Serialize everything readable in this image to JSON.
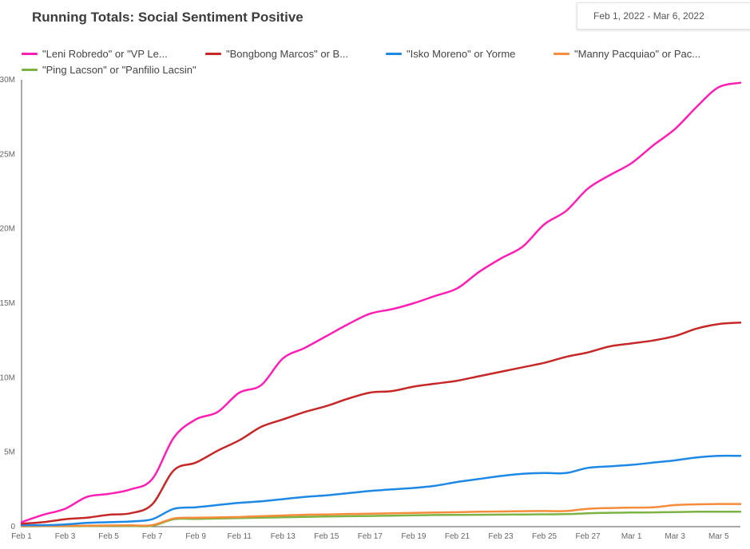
{
  "header": {
    "title": "Running Totals: Social Sentiment Positive",
    "date_range": "Feb 1, 2022 - Mar 6, 2022"
  },
  "chart_data": {
    "type": "line",
    "title": "Running Totals: Social Sentiment Positive",
    "xlabel": "",
    "ylabel": "",
    "ylim": [
      0,
      30000000
    ],
    "yticks": [
      0,
      5000000,
      10000000,
      15000000,
      20000000,
      25000000,
      30000000
    ],
    "ytick_labels": [
      "0",
      "5M",
      "10M",
      "15M",
      "20M",
      "25M",
      "30M"
    ],
    "x_tick_labels": [
      "Feb 1",
      "Feb 3",
      "Feb 5",
      "Feb 7",
      "Feb 9",
      "Feb 11",
      "Feb 13",
      "Feb 15",
      "Feb 17",
      "Feb 19",
      "Feb 21",
      "Feb 23",
      "Feb 25",
      "Feb 27",
      "Mar 1",
      "Mar 3",
      "Mar 5"
    ],
    "x": [
      "Feb 1",
      "Feb 2",
      "Feb 3",
      "Feb 4",
      "Feb 5",
      "Feb 6",
      "Feb 7",
      "Feb 8",
      "Feb 9",
      "Feb 10",
      "Feb 11",
      "Feb 12",
      "Feb 13",
      "Feb 14",
      "Feb 15",
      "Feb 16",
      "Feb 17",
      "Feb 18",
      "Feb 19",
      "Feb 20",
      "Feb 21",
      "Feb 22",
      "Feb 23",
      "Feb 24",
      "Feb 25",
      "Feb 26",
      "Feb 27",
      "Feb 28",
      "Mar 1",
      "Mar 2",
      "Mar 3",
      "Mar 4",
      "Mar 5",
      "Mar 6"
    ],
    "grid": false,
    "legend_position": "top",
    "series": [
      {
        "name": "\"Leni Robredo\" or \"VP Le...",
        "color": "#ff1fb4",
        "values": [
          0.3,
          0.8,
          1.2,
          2.0,
          2.2,
          2.5,
          3.2,
          6.0,
          7.2,
          7.7,
          9.0,
          9.5,
          11.3,
          12.0,
          12.8,
          13.6,
          14.3,
          14.6,
          15.0,
          15.5,
          16.0,
          17.1,
          18.0,
          18.8,
          20.3,
          21.2,
          22.7,
          23.6,
          24.4,
          25.6,
          26.7,
          28.2,
          29.5,
          29.8
        ]
      },
      {
        "name": "\"Bongbong Marcos\" or B...",
        "color": "#c62828",
        "values": [
          0.2,
          0.3,
          0.5,
          0.6,
          0.8,
          0.9,
          1.5,
          3.8,
          4.3,
          5.1,
          5.8,
          6.7,
          7.2,
          7.7,
          8.1,
          8.6,
          9.0,
          9.1,
          9.4,
          9.6,
          9.8,
          10.1,
          10.4,
          10.7,
          11.0,
          11.4,
          11.7,
          12.1,
          12.3,
          12.5,
          12.8,
          13.3,
          13.6,
          13.7
        ]
      },
      {
        "name": "\"Isko Moreno\" or Yorme",
        "color": "#1e88e5",
        "values": [
          0.1,
          0.1,
          0.15,
          0.25,
          0.3,
          0.35,
          0.5,
          1.2,
          1.3,
          1.45,
          1.6,
          1.7,
          1.85,
          2.0,
          2.1,
          2.25,
          2.4,
          2.5,
          2.6,
          2.75,
          3.0,
          3.2,
          3.4,
          3.55,
          3.6,
          3.6,
          3.95,
          4.05,
          4.15,
          4.3,
          4.45,
          4.65,
          4.75,
          4.75
        ]
      },
      {
        "name": "\"Manny Pacquiao\" or Pac...",
        "color": "#f58c3b",
        "values": [
          0.05,
          0.05,
          0.05,
          0.07,
          0.08,
          0.09,
          0.1,
          0.55,
          0.6,
          0.62,
          0.65,
          0.7,
          0.75,
          0.8,
          0.82,
          0.85,
          0.87,
          0.9,
          0.92,
          0.95,
          0.97,
          1.0,
          1.02,
          1.04,
          1.05,
          1.05,
          1.2,
          1.25,
          1.28,
          1.3,
          1.45,
          1.5,
          1.52,
          1.52
        ]
      },
      {
        "name": "\"Ping Lacson\" or \"Panfilio Lacsin\"",
        "color": "#7cb342",
        "values": [
          0.02,
          0.03,
          0.03,
          0.04,
          0.05,
          0.05,
          0.06,
          0.5,
          0.52,
          0.55,
          0.58,
          0.6,
          0.63,
          0.66,
          0.68,
          0.7,
          0.72,
          0.74,
          0.76,
          0.78,
          0.79,
          0.8,
          0.81,
          0.82,
          0.83,
          0.84,
          0.9,
          0.93,
          0.95,
          0.96,
          0.98,
          1.0,
          1.0,
          1.0
        ]
      }
    ]
  }
}
